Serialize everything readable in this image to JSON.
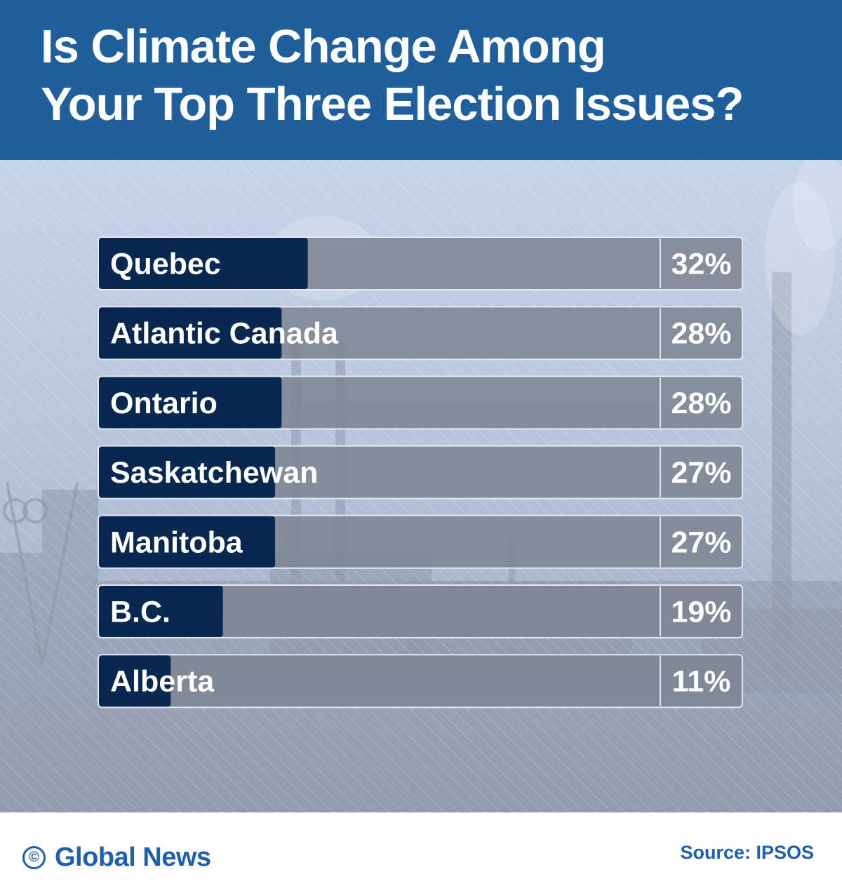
{
  "header": {
    "title_line1": "Is Climate Change Among",
    "title_line2": "Your Top Three Election Issues?"
  },
  "colors": {
    "header_bg": "#1e5f9c",
    "bar_fill": "#082850",
    "bar_track": "#7d8593",
    "label_text": "#ffffff",
    "brand": "#1f5fae"
  },
  "chart_data": {
    "type": "bar",
    "orientation": "horizontal",
    "title": "Is Climate Change Among Your Top Three Election Issues?",
    "categories": [
      "Quebec",
      "Atlantic Canada",
      "Ontario",
      "Saskatchewan",
      "Manitoba",
      "B.C.",
      "Alberta"
    ],
    "values": [
      32,
      28,
      28,
      27,
      27,
      19,
      11
    ],
    "value_labels": [
      "32%",
      "28%",
      "28%",
      "27%",
      "27%",
      "19%",
      "11%"
    ],
    "unit": "%",
    "xlim": [
      0,
      100
    ],
    "grid": false,
    "legend": "none"
  },
  "footer": {
    "copyright_icon": "©",
    "brand": "Global News",
    "source": "Source: IPSOS"
  }
}
